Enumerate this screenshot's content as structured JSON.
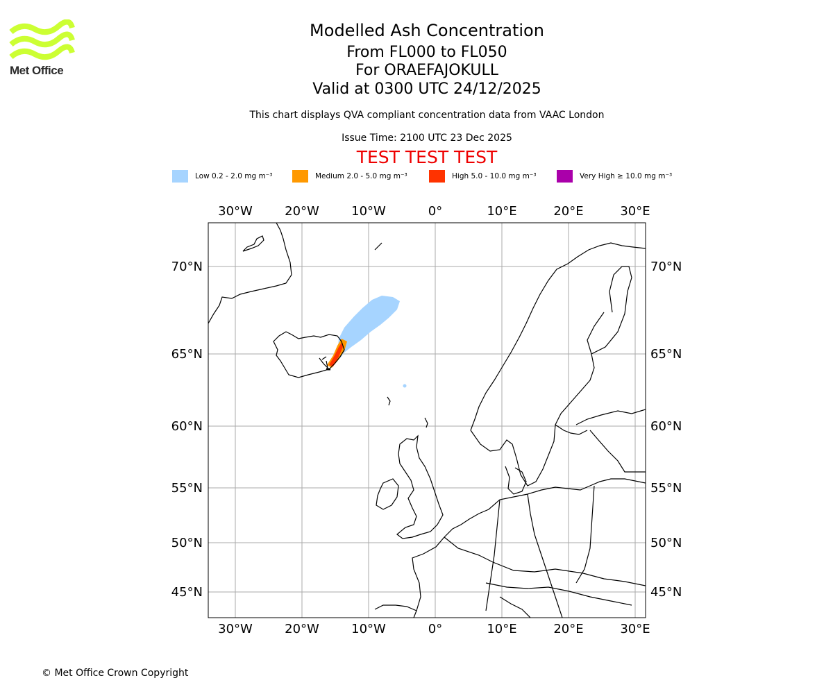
{
  "brand": {
    "name": "Met Office",
    "logo_color": "#ccff33"
  },
  "header": {
    "title": "Modelled Ash Concentration",
    "level_range": "From FL000 to FL050",
    "volcano": "For ORAEFAJOKULL",
    "valid_time": "Valid at 0300 UTC 24/12/2025",
    "compliance_note": "This chart displays QVA compliant concentration data from VAAC London",
    "issue_time": "Issue Time: 2100 UTC 23 Dec 2025",
    "test_banner": "TEST TEST TEST",
    "test_banner_color": "#ee0000"
  },
  "legend": {
    "items": [
      {
        "label": "Low 0.2 - 2.0 mg m⁻³",
        "color": "#a6d4ff"
      },
      {
        "label": "Medium 2.0 - 5.0 mg m⁻³",
        "color": "#ff9900"
      },
      {
        "label": "High 5.0 - 10.0 mg m⁻³",
        "color": "#ff3300"
      },
      {
        "label": "Very High ≥ 10.0 mg m⁻³",
        "color": "#aa00aa"
      }
    ]
  },
  "map": {
    "lon_ticks": [
      "30°W",
      "20°W",
      "10°W",
      "0°",
      "10°E",
      "20°E",
      "30°E"
    ],
    "lat_ticks": [
      "70°N",
      "65°N",
      "60°N",
      "55°N",
      "50°N",
      "45°N"
    ],
    "gridline_color": "#aaaaaa",
    "coastline_color": "#000000"
  },
  "footer": {
    "copyright": "© Met Office Crown Copyright"
  }
}
